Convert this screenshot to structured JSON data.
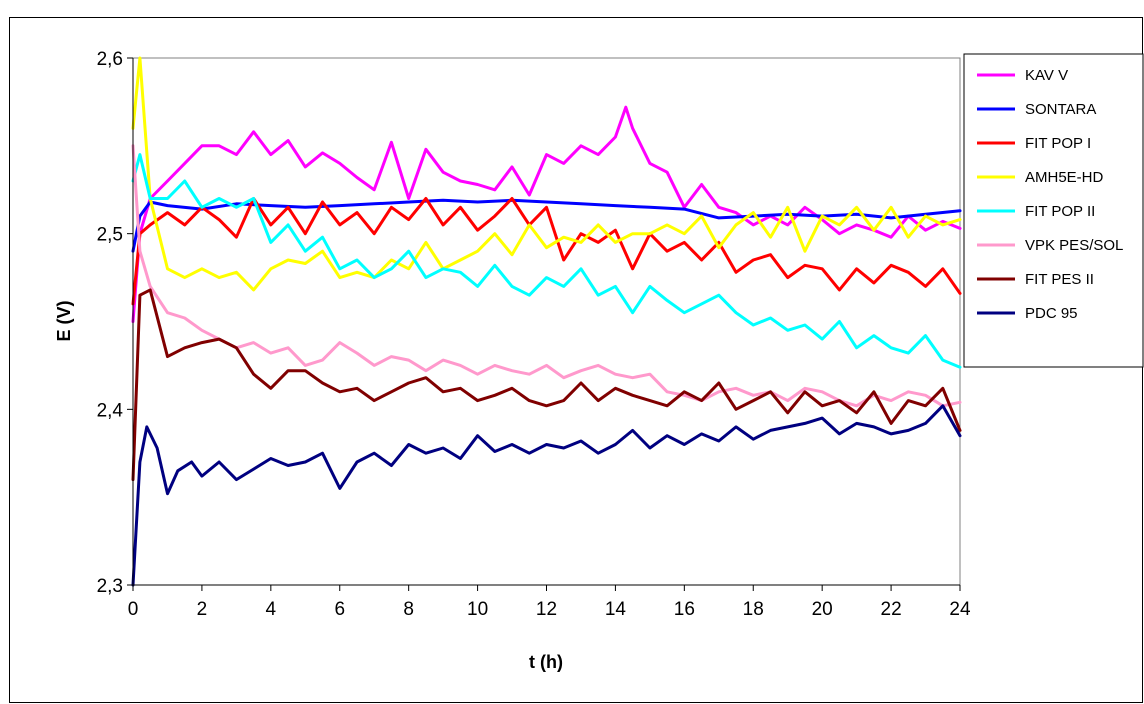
{
  "chart_data": {
    "type": "line",
    "title": "",
    "xlabel": "t (h)",
    "ylabel": "E (V)",
    "xlim": [
      0,
      24
    ],
    "ylim": [
      2.3,
      2.6
    ],
    "x_ticks": [
      "0",
      "2",
      "4",
      "6",
      "8",
      "10",
      "12",
      "14",
      "16",
      "18",
      "20",
      "22",
      "24"
    ],
    "y_ticks": [
      "2,3",
      "2,4",
      "2,5",
      "2,6"
    ],
    "grid": false,
    "legend_position": "right",
    "series": [
      {
        "name": "KAV V",
        "color": "#ff00ff",
        "x": [
          0,
          0.2,
          0.5,
          1,
          1.5,
          2,
          2.5,
          3,
          3.5,
          4,
          4.5,
          5,
          5.5,
          6,
          6.5,
          7,
          7.5,
          8,
          8.5,
          9,
          9.5,
          10,
          10.5,
          11,
          11.5,
          12,
          12.5,
          13,
          13.5,
          14,
          14.3,
          14.5,
          15,
          15.5,
          16,
          16.5,
          17,
          17.5,
          18,
          18.5,
          19,
          19.5,
          20,
          20.5,
          21,
          21.5,
          22,
          22.5,
          23,
          23.5,
          24
        ],
        "y": [
          2.45,
          2.5,
          2.52,
          2.53,
          2.54,
          2.55,
          2.55,
          2.545,
          2.558,
          2.545,
          2.553,
          2.538,
          2.546,
          2.54,
          2.532,
          2.525,
          2.552,
          2.52,
          2.548,
          2.535,
          2.53,
          2.528,
          2.525,
          2.538,
          2.522,
          2.545,
          2.54,
          2.55,
          2.545,
          2.555,
          2.572,
          2.56,
          2.54,
          2.535,
          2.515,
          2.528,
          2.515,
          2.512,
          2.505,
          2.51,
          2.505,
          2.515,
          2.508,
          2.5,
          2.505,
          2.502,
          2.498,
          2.51,
          2.502,
          2.507,
          2.503
        ]
      },
      {
        "name": "SONTARA",
        "color": "#0000ff",
        "x": [
          0,
          0.2,
          0.5,
          1,
          2,
          3,
          4,
          5,
          6,
          7,
          8,
          9,
          10,
          11,
          12,
          13,
          14,
          15,
          16,
          17,
          18,
          19,
          20,
          21,
          22,
          23,
          24
        ],
        "y": [
          2.49,
          2.51,
          2.518,
          2.516,
          2.514,
          2.517,
          2.516,
          2.515,
          2.516,
          2.517,
          2.518,
          2.519,
          2.518,
          2.519,
          2.518,
          2.517,
          2.516,
          2.515,
          2.514,
          2.509,
          2.51,
          2.511,
          2.51,
          2.511,
          2.509,
          2.511,
          2.513
        ]
      },
      {
        "name": "FIT POP I",
        "color": "#ff0000",
        "x": [
          0,
          0.2,
          0.5,
          1,
          1.5,
          2,
          2.5,
          3,
          3.5,
          4,
          4.5,
          5,
          5.5,
          6,
          6.5,
          7,
          7.5,
          8,
          8.5,
          9,
          9.5,
          10,
          10.5,
          11,
          11.5,
          12,
          12.5,
          13,
          13.5,
          14,
          14.5,
          15,
          15.5,
          16,
          16.5,
          17,
          17.5,
          18,
          18.5,
          19,
          19.5,
          20,
          20.5,
          21,
          21.5,
          22,
          22.5,
          23,
          23.5,
          24
        ],
        "y": [
          2.46,
          2.5,
          2.505,
          2.512,
          2.505,
          2.515,
          2.508,
          2.498,
          2.52,
          2.505,
          2.515,
          2.5,
          2.518,
          2.505,
          2.512,
          2.5,
          2.515,
          2.508,
          2.52,
          2.505,
          2.515,
          2.502,
          2.51,
          2.52,
          2.505,
          2.515,
          2.485,
          2.5,
          2.495,
          2.502,
          2.48,
          2.5,
          2.49,
          2.495,
          2.485,
          2.495,
          2.478,
          2.485,
          2.488,
          2.475,
          2.482,
          2.48,
          2.468,
          2.48,
          2.472,
          2.482,
          2.478,
          2.47,
          2.48,
          2.466
        ]
      },
      {
        "name": "AMH5E-HD",
        "color": "#ffff00",
        "x": [
          0,
          0.2,
          0.5,
          1,
          1.5,
          2,
          2.5,
          3,
          3.5,
          4,
          4.5,
          5,
          5.5,
          6,
          6.5,
          7,
          7.5,
          8,
          8.5,
          9,
          9.5,
          10,
          10.5,
          11,
          11.5,
          12,
          12.5,
          13,
          13.5,
          14,
          14.5,
          15,
          15.5,
          16,
          16.5,
          17,
          17.5,
          18,
          18.5,
          19,
          19.5,
          20,
          20.5,
          21,
          21.5,
          22,
          22.5,
          23,
          23.5,
          24
        ],
        "y": [
          2.56,
          2.6,
          2.52,
          2.48,
          2.475,
          2.48,
          2.475,
          2.478,
          2.468,
          2.48,
          2.485,
          2.483,
          2.49,
          2.475,
          2.478,
          2.475,
          2.485,
          2.48,
          2.495,
          2.48,
          2.485,
          2.49,
          2.5,
          2.488,
          2.505,
          2.492,
          2.498,
          2.495,
          2.505,
          2.495,
          2.5,
          2.5,
          2.505,
          2.5,
          2.51,
          2.492,
          2.505,
          2.512,
          2.498,
          2.515,
          2.49,
          2.51,
          2.505,
          2.515,
          2.502,
          2.515,
          2.498,
          2.51,
          2.505,
          2.508
        ]
      },
      {
        "name": "FIT POP II",
        "color": "#00ffff",
        "x": [
          0,
          0.2,
          0.5,
          1,
          1.5,
          2,
          2.5,
          3,
          3.5,
          4,
          4.5,
          5,
          5.5,
          6,
          6.5,
          7,
          7.5,
          8,
          8.5,
          9,
          9.5,
          10,
          10.5,
          11,
          11.5,
          12,
          12.5,
          13,
          13.5,
          14,
          14.5,
          15,
          15.5,
          16,
          16.5,
          17,
          17.5,
          18,
          18.5,
          19,
          19.5,
          20,
          20.5,
          21,
          21.5,
          22,
          22.5,
          23,
          23.5,
          24
        ],
        "y": [
          2.53,
          2.545,
          2.52,
          2.52,
          2.53,
          2.515,
          2.52,
          2.515,
          2.52,
          2.495,
          2.505,
          2.49,
          2.498,
          2.48,
          2.485,
          2.475,
          2.48,
          2.49,
          2.475,
          2.48,
          2.478,
          2.47,
          2.482,
          2.47,
          2.465,
          2.475,
          2.47,
          2.48,
          2.465,
          2.47,
          2.455,
          2.47,
          2.462,
          2.455,
          2.46,
          2.465,
          2.455,
          2.448,
          2.452,
          2.445,
          2.448,
          2.44,
          2.45,
          2.435,
          2.442,
          2.435,
          2.432,
          2.442,
          2.428,
          2.424
        ]
      },
      {
        "name": "VPK PES/SOL",
        "color": "#ff99cc",
        "x": [
          0,
          0.2,
          0.5,
          1,
          1.5,
          2,
          2.5,
          3,
          3.5,
          4,
          4.5,
          5,
          5.5,
          6,
          6.5,
          7,
          7.5,
          8,
          8.5,
          9,
          9.5,
          10,
          10.5,
          11,
          11.5,
          12,
          12.5,
          13,
          13.5,
          14,
          14.5,
          15,
          15.5,
          16,
          16.5,
          17,
          17.5,
          18,
          18.5,
          19,
          19.5,
          20,
          20.5,
          21,
          21.5,
          22,
          22.5,
          23,
          23.5,
          24
        ],
        "y": [
          2.55,
          2.49,
          2.47,
          2.455,
          2.452,
          2.445,
          2.44,
          2.435,
          2.438,
          2.432,
          2.435,
          2.425,
          2.428,
          2.438,
          2.432,
          2.425,
          2.43,
          2.428,
          2.422,
          2.428,
          2.425,
          2.42,
          2.425,
          2.422,
          2.42,
          2.425,
          2.418,
          2.422,
          2.425,
          2.42,
          2.418,
          2.42,
          2.41,
          2.408,
          2.405,
          2.41,
          2.412,
          2.408,
          2.41,
          2.405,
          2.412,
          2.41,
          2.405,
          2.402,
          2.408,
          2.405,
          2.41,
          2.408,
          2.402,
          2.404
        ]
      },
      {
        "name": "FIT PES II",
        "color": "#800000",
        "x": [
          0,
          0.2,
          0.5,
          1,
          1.5,
          2,
          2.5,
          3,
          3.5,
          4,
          4.5,
          5,
          5.5,
          6,
          6.5,
          7,
          7.5,
          8,
          8.5,
          9,
          9.5,
          10,
          10.5,
          11,
          11.5,
          12,
          12.5,
          13,
          13.5,
          14,
          14.5,
          15,
          15.5,
          16,
          16.5,
          17,
          17.5,
          18,
          18.5,
          19,
          19.5,
          20,
          20.5,
          21,
          21.5,
          22,
          22.5,
          23,
          23.5,
          24
        ],
        "y": [
          2.36,
          2.465,
          2.468,
          2.43,
          2.435,
          2.438,
          2.44,
          2.435,
          2.42,
          2.412,
          2.422,
          2.422,
          2.415,
          2.41,
          2.412,
          2.405,
          2.41,
          2.415,
          2.418,
          2.41,
          2.412,
          2.405,
          2.408,
          2.412,
          2.405,
          2.402,
          2.405,
          2.415,
          2.405,
          2.412,
          2.408,
          2.405,
          2.402,
          2.41,
          2.405,
          2.415,
          2.4,
          2.405,
          2.41,
          2.398,
          2.41,
          2.402,
          2.405,
          2.398,
          2.41,
          2.392,
          2.405,
          2.402,
          2.412,
          2.388
        ]
      },
      {
        "name": "PDC 95",
        "color": "#000080",
        "x": [
          0,
          0.2,
          0.4,
          0.7,
          1,
          1.3,
          1.7,
          2,
          2.5,
          3,
          3.5,
          4,
          4.5,
          5,
          5.5,
          6,
          6.5,
          7,
          7.5,
          8,
          8.5,
          9,
          9.5,
          10,
          10.5,
          11,
          11.5,
          12,
          12.5,
          13,
          13.5,
          14,
          14.5,
          15,
          15.5,
          16,
          16.5,
          17,
          17.5,
          18,
          18.5,
          19,
          19.5,
          20,
          20.5,
          21,
          21.5,
          22,
          22.5,
          23,
          23.5,
          24
        ],
        "y": [
          2.3,
          2.37,
          2.39,
          2.378,
          2.352,
          2.365,
          2.37,
          2.362,
          2.37,
          2.36,
          2.366,
          2.372,
          2.368,
          2.37,
          2.375,
          2.355,
          2.37,
          2.375,
          2.368,
          2.38,
          2.375,
          2.378,
          2.372,
          2.385,
          2.376,
          2.38,
          2.375,
          2.38,
          2.378,
          2.382,
          2.375,
          2.38,
          2.388,
          2.378,
          2.385,
          2.38,
          2.386,
          2.382,
          2.39,
          2.383,
          2.388,
          2.39,
          2.392,
          2.395,
          2.386,
          2.392,
          2.39,
          2.386,
          2.388,
          2.392,
          2.402,
          2.385
        ]
      }
    ]
  }
}
